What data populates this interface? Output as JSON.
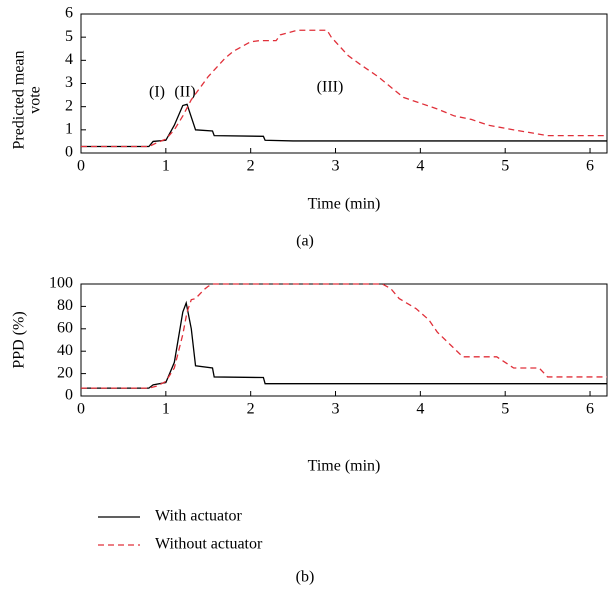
{
  "chart_data": [
    {
      "type": "line",
      "label": "(a)",
      "xlabel": "Time (min)",
      "ylabel": [
        "Predicted mean",
        "vote"
      ],
      "xlim": [
        0,
        6.2
      ],
      "xticks": [
        0,
        1,
        2,
        3,
        4,
        5,
        6
      ],
      "ylim": [
        0,
        6
      ],
      "yticks": [
        0,
        1,
        2,
        3,
        4,
        5,
        6
      ],
      "annotations": [
        "(I)",
        "(II)",
        "(III)"
      ],
      "series": [
        {
          "color": "#000000",
          "dash": false,
          "x": [
            0,
            0.8,
            0.85,
            1.0,
            1.1,
            1.2,
            1.25,
            1.35,
            1.55,
            1.57,
            2.15,
            2.17,
            2.5,
            6.2
          ],
          "values": [
            0.28,
            0.28,
            0.5,
            0.55,
            1.2,
            2.05,
            2.1,
            1.0,
            0.95,
            0.75,
            0.72,
            0.55,
            0.52,
            0.52
          ]
        },
        {
          "color": "#e0303a",
          "dash": true,
          "x": [
            0,
            0.8,
            0.9,
            1.0,
            1.1,
            1.2,
            1.3,
            1.4,
            1.5,
            1.6,
            1.7,
            1.8,
            1.9,
            2.0,
            2.1,
            2.3,
            2.35,
            2.55,
            2.9,
            2.95,
            3.05,
            3.15,
            3.3,
            3.5,
            3.7,
            3.8,
            4.0,
            4.2,
            4.4,
            4.6,
            4.8,
            5.1,
            5.5,
            6.2
          ],
          "values": [
            0.28,
            0.28,
            0.45,
            0.6,
            1.0,
            1.6,
            2.3,
            2.8,
            3.3,
            3.7,
            4.1,
            4.4,
            4.6,
            4.8,
            4.85,
            4.85,
            5.1,
            5.3,
            5.3,
            5.0,
            4.6,
            4.2,
            3.8,
            3.3,
            2.7,
            2.4,
            2.15,
            1.9,
            1.6,
            1.45,
            1.2,
            1.0,
            0.75,
            0.75
          ]
        }
      ]
    },
    {
      "type": "line",
      "label": "(b)",
      "xlabel": "Time (min)",
      "ylabel": [
        "PPD (%)"
      ],
      "xlim": [
        0,
        6.2
      ],
      "xticks": [
        0,
        1,
        2,
        3,
        4,
        5,
        6
      ],
      "ylim": [
        0,
        100
      ],
      "yticks": [
        0,
        20,
        40,
        60,
        80,
        100
      ],
      "series": [
        {
          "name": "With actuator",
          "color": "#000000",
          "dash": false,
          "x": [
            0,
            0.8,
            0.85,
            1.0,
            1.1,
            1.2,
            1.24,
            1.3,
            1.35,
            1.55,
            1.57,
            2.15,
            2.17,
            6.2
          ],
          "values": [
            7,
            7,
            10,
            12,
            30,
            75,
            83,
            60,
            27,
            25,
            17,
            16.5,
            11,
            11
          ]
        },
        {
          "name": "Without actuator",
          "color": "#e0303a",
          "dash": true,
          "x": [
            0,
            0.8,
            0.9,
            1.0,
            1.1,
            1.2,
            1.25,
            1.3,
            1.35,
            1.45,
            1.5,
            1.55,
            3.55,
            3.65,
            3.75,
            3.95,
            4.1,
            4.2,
            4.35,
            4.5,
            4.9,
            5.1,
            5.4,
            5.5,
            6.2
          ],
          "values": [
            7,
            7,
            9,
            13,
            25,
            55,
            75,
            86,
            87,
            95,
            98,
            100,
            100,
            96,
            87,
            78,
            68,
            57,
            46,
            35,
            35,
            25,
            25,
            17,
            17
          ]
        }
      ]
    }
  ]
}
